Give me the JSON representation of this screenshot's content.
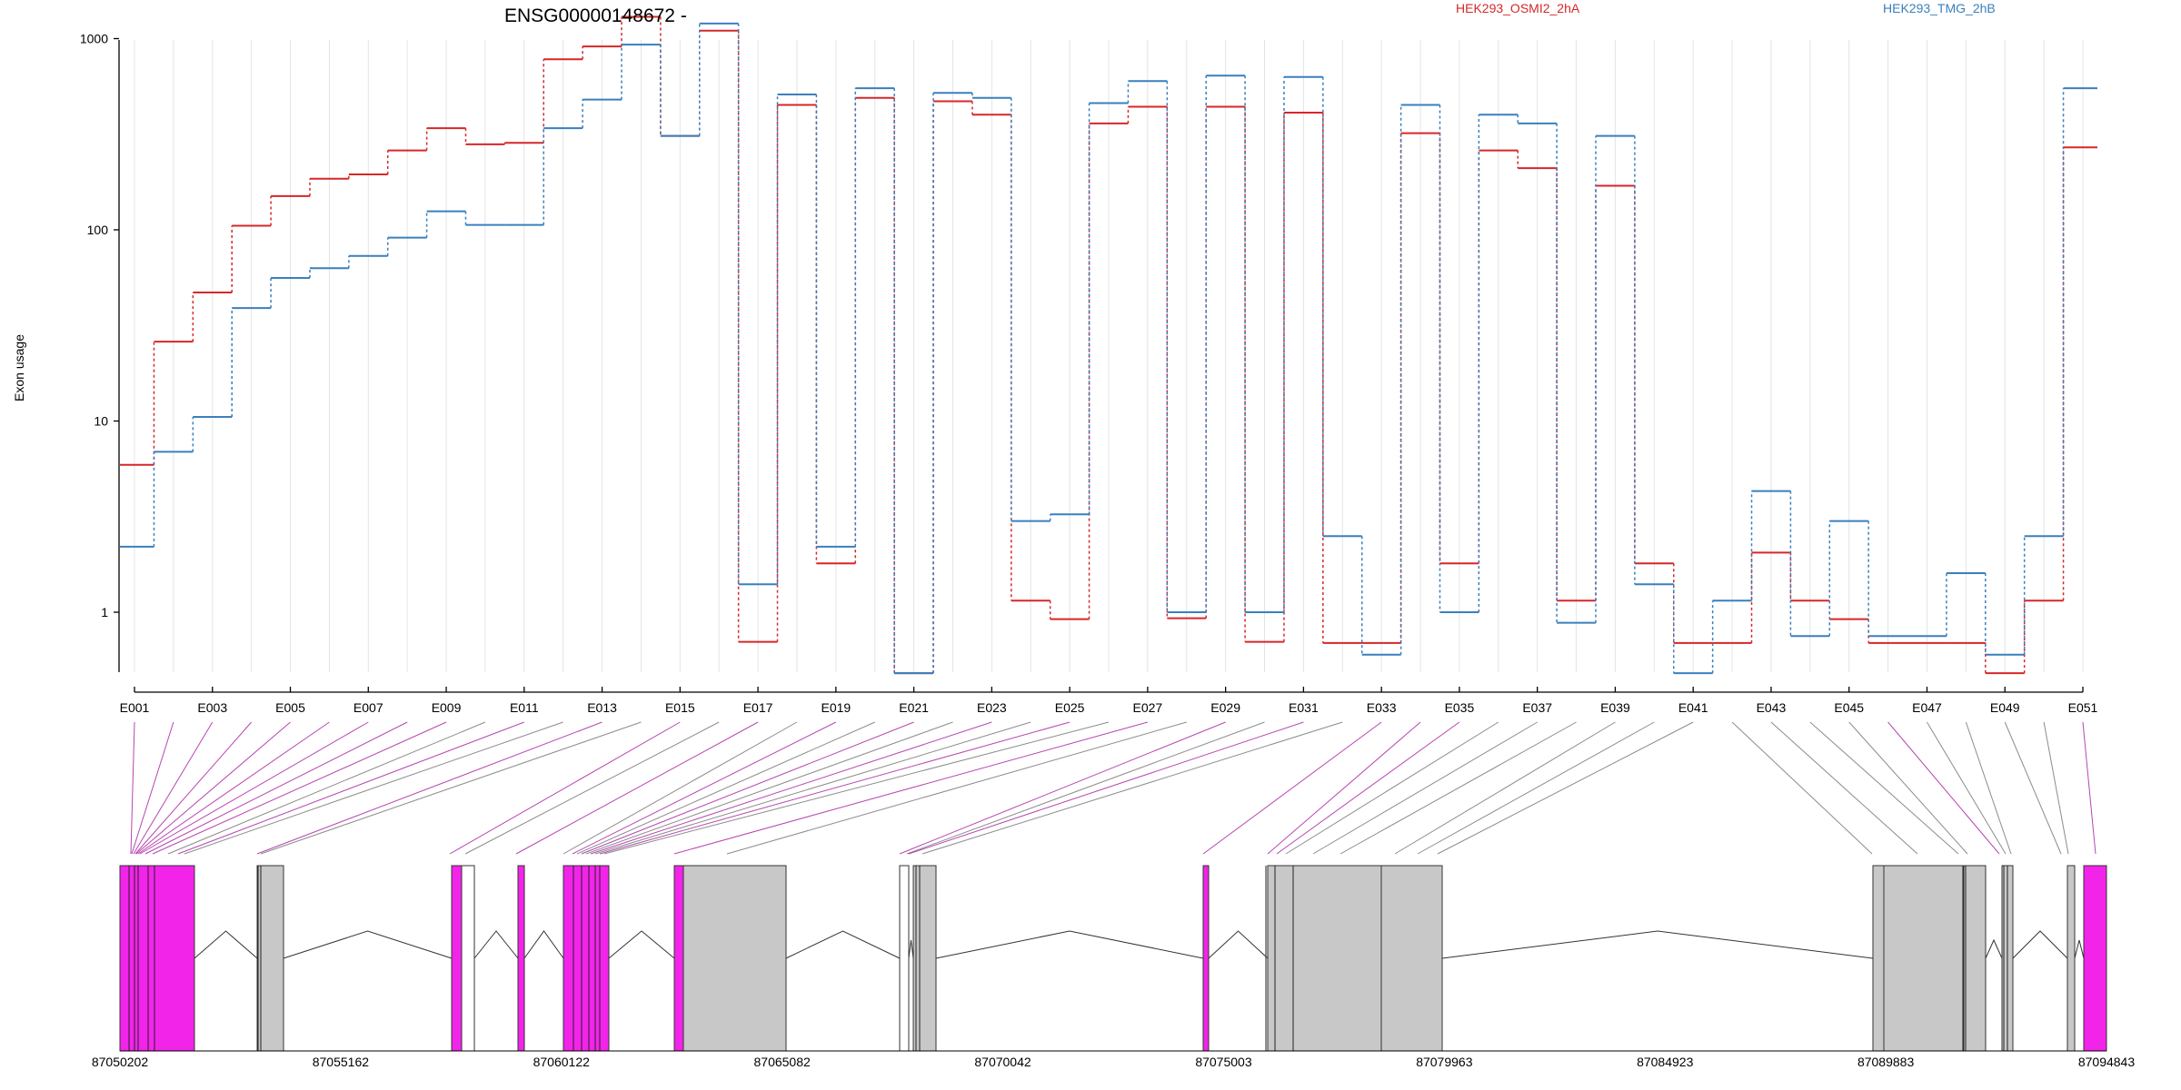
{
  "chart_data": {
    "type": "line",
    "title": "ENSG00000148672 -",
    "ylabel": "Exon usage",
    "yscale": "log",
    "ylim": [
      0.38,
      1900
    ],
    "yticks": [
      1,
      10,
      100,
      1000
    ],
    "ytick_labels": [
      "1",
      "10",
      "100",
      "1000"
    ],
    "legend_position": "top",
    "colors": {
      "HEK293_OSMI2_2hA": "#d62728",
      "HEK293_TMG_2hB": "#3a7fbd",
      "highlight": "#f224e9",
      "exon": "#c8c8c8"
    },
    "categories": [
      "E001",
      "E002",
      "E003",
      "E004",
      "E005",
      "E006",
      "E007",
      "E008",
      "E009",
      "E010",
      "E011",
      "E012",
      "E013",
      "E014",
      "E015",
      "E016",
      "E017",
      "E018",
      "E019",
      "E020",
      "E021",
      "E022",
      "E023",
      "E024",
      "E025",
      "E026",
      "E027",
      "E028",
      "E029",
      "E030",
      "E031",
      "E032",
      "E033",
      "E034",
      "E035",
      "E036",
      "E037",
      "E038",
      "E039",
      "E040",
      "E041",
      "E042",
      "E043",
      "E044",
      "E045",
      "E046",
      "E047",
      "E048",
      "E049",
      "E050",
      "E051"
    ],
    "xtick_labels": [
      "E001",
      "E003",
      "E005",
      "E007",
      "E009",
      "E011",
      "E013",
      "E015",
      "E017",
      "E019",
      "E021",
      "E023",
      "E025",
      "E027",
      "E029",
      "E031",
      "E033",
      "E035",
      "E037",
      "E039",
      "E041",
      "E043",
      "E045",
      "E047",
      "E049",
      "E051"
    ],
    "series": [
      {
        "name": "HEK293_OSMI2_2hA",
        "values": [
          5.9,
          26,
          47,
          105,
          150,
          185,
          195,
          260,
          340,
          280,
          285,
          780,
          910,
          1300,
          310,
          1100,
          0.7,
          450,
          1.8,
          490,
          0.48,
          470,
          400,
          1.15,
          0.92,
          360,
          440,
          0.93,
          440,
          0.7,
          410,
          0.69,
          0.69,
          320,
          1.8,
          260,
          210,
          1.15,
          170,
          1.8,
          0.69,
          0.69,
          2.05,
          1.15,
          0.92,
          0.69,
          0.69,
          0.69,
          0.48,
          1.15,
          270
        ]
      },
      {
        "name": "HEK293_TMG_2hB",
        "values": [
          2.2,
          6.9,
          10.5,
          39,
          56,
          63,
          73,
          91,
          125,
          106,
          106,
          340,
          480,
          930,
          310,
          1200,
          1.4,
          510,
          2.2,
          550,
          0.48,
          520,
          490,
          3.0,
          3.25,
          460,
          600,
          1.0,
          640,
          1.0,
          630,
          2.5,
          0.6,
          450,
          1.0,
          400,
          360,
          0.88,
          310,
          1.4,
          0.48,
          1.15,
          4.3,
          0.75,
          3.0,
          0.75,
          0.75,
          1.6,
          0.6,
          2.5,
          550
        ]
      }
    ],
    "genome_axis": {
      "range": [
        87050202,
        87094843
      ],
      "tick_labels": [
        "87050202",
        "87055162",
        "87060122",
        "87065082",
        "87070042",
        "87075003",
        "87079963",
        "87084923",
        "87089883",
        "87094843"
      ]
    }
  }
}
